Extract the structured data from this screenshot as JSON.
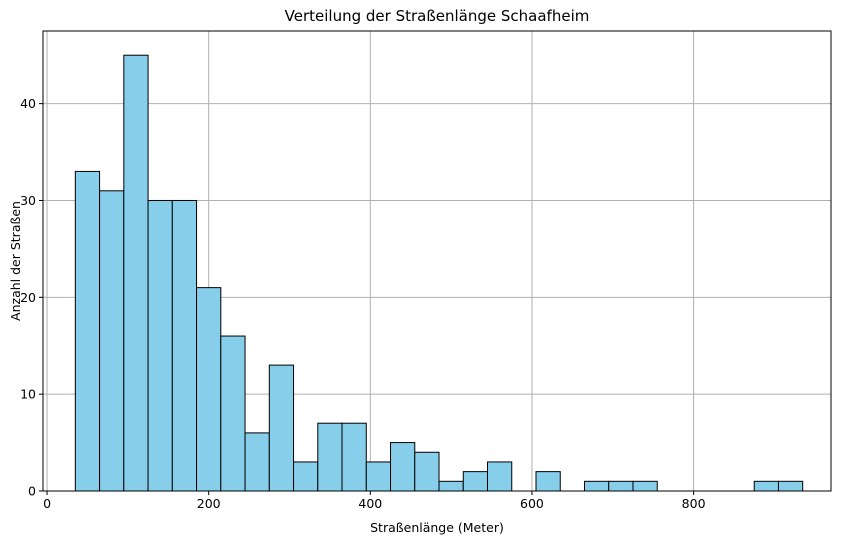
{
  "chart_data": {
    "type": "bar",
    "title": "Verteilung der Straßenlänge Schaafheim",
    "xlabel": "Straßenlänge (Meter)",
    "ylabel": "Anzahl der Straßen",
    "xlim": [
      -5,
      970
    ],
    "ylim": [
      0,
      47.5
    ],
    "xticks": [
      0,
      200,
      400,
      600,
      800
    ],
    "yticks": [
      0,
      10,
      20,
      30,
      40
    ],
    "grid": true,
    "bar_color": "#87CEEB",
    "edge_color": "#000000",
    "bin_start": 35,
    "bin_width": 30,
    "values": [
      33,
      31,
      45,
      30,
      30,
      21,
      16,
      6,
      13,
      3,
      7,
      7,
      3,
      5,
      4,
      1,
      2,
      3,
      0,
      2,
      0,
      1,
      1,
      1,
      0,
      0,
      0,
      0,
      1,
      1
    ]
  }
}
